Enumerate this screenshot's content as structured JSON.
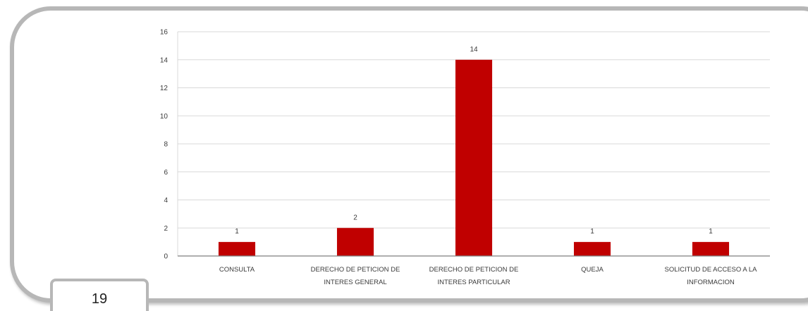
{
  "page": {
    "number": "19"
  },
  "colors": {
    "bar": "#c00000",
    "grid": "#d9d9d9",
    "axis": "#7f7f7f",
    "frame": "#b7b7b7"
  },
  "chart_data": {
    "type": "bar",
    "categories": [
      [
        "CONSULTA"
      ],
      [
        "DERECHO DE PETICION DE",
        "INTERES GENERAL"
      ],
      [
        "DERECHO DE PETICION DE",
        "INTERES PARTICULAR"
      ],
      [
        "QUEJA"
      ],
      [
        "SOLICITUD DE ACCESO A LA",
        "INFORMACION"
      ]
    ],
    "values": [
      1,
      2,
      14,
      1,
      1
    ],
    "data_labels": [
      "1",
      "2",
      "14",
      "1",
      "1"
    ],
    "yticks": [
      0,
      2,
      4,
      6,
      8,
      10,
      12,
      14,
      16
    ],
    "ylim": [
      0,
      16
    ],
    "grid": true,
    "legend": "none"
  }
}
